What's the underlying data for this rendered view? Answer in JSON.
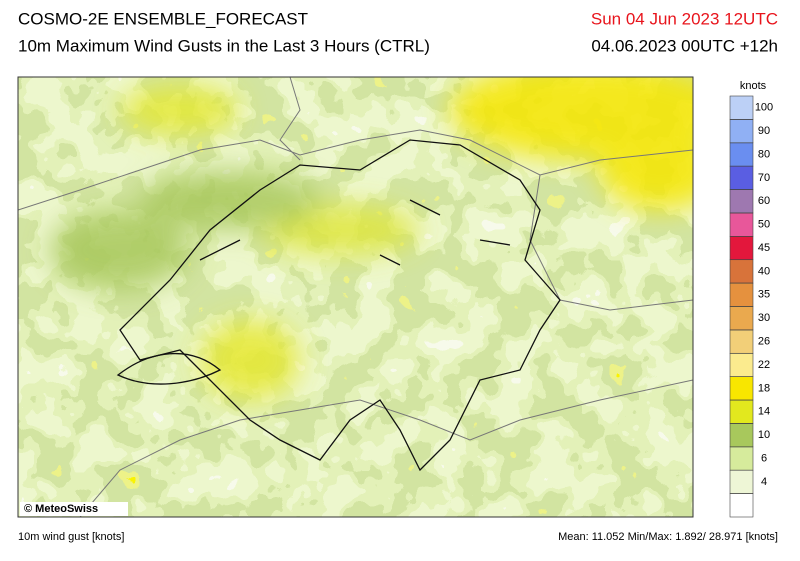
{
  "header": {
    "title": "COSMO-2E ENSEMBLE_FORECAST",
    "subtitle": "10m Maximum Wind Gusts in the Last 3 Hours (CTRL)",
    "valid_time": "Sun 04 Jun 2023 12UTC",
    "run_time": "04.06.2023 00UTC +12h"
  },
  "legend": {
    "unit": "knots",
    "levels": [
      4,
      6,
      10,
      14,
      18,
      22,
      26,
      30,
      35,
      40,
      45,
      50,
      60,
      70,
      80,
      90,
      100
    ],
    "colors": [
      "#ffffff",
      "#eef6d6",
      "#d6eb9c",
      "#a8c85c",
      "#e2e81e",
      "#f8e600",
      "#fbeb8e",
      "#f2cf78",
      "#eaa94e",
      "#e5913e",
      "#d8733a",
      "#e3173c",
      "#e8579a",
      "#9e78b0",
      "#5a5ee2",
      "#6a8ef0",
      "#90b0f4",
      "#bcd0f6"
    ]
  },
  "map": {
    "copyright": "© MeteoSwiss"
  },
  "footer": {
    "variable": "10m wind gust [knots]",
    "stats": "Mean:  11.052 Min/Max:  1.892/ 28.971 [knots]"
  }
}
